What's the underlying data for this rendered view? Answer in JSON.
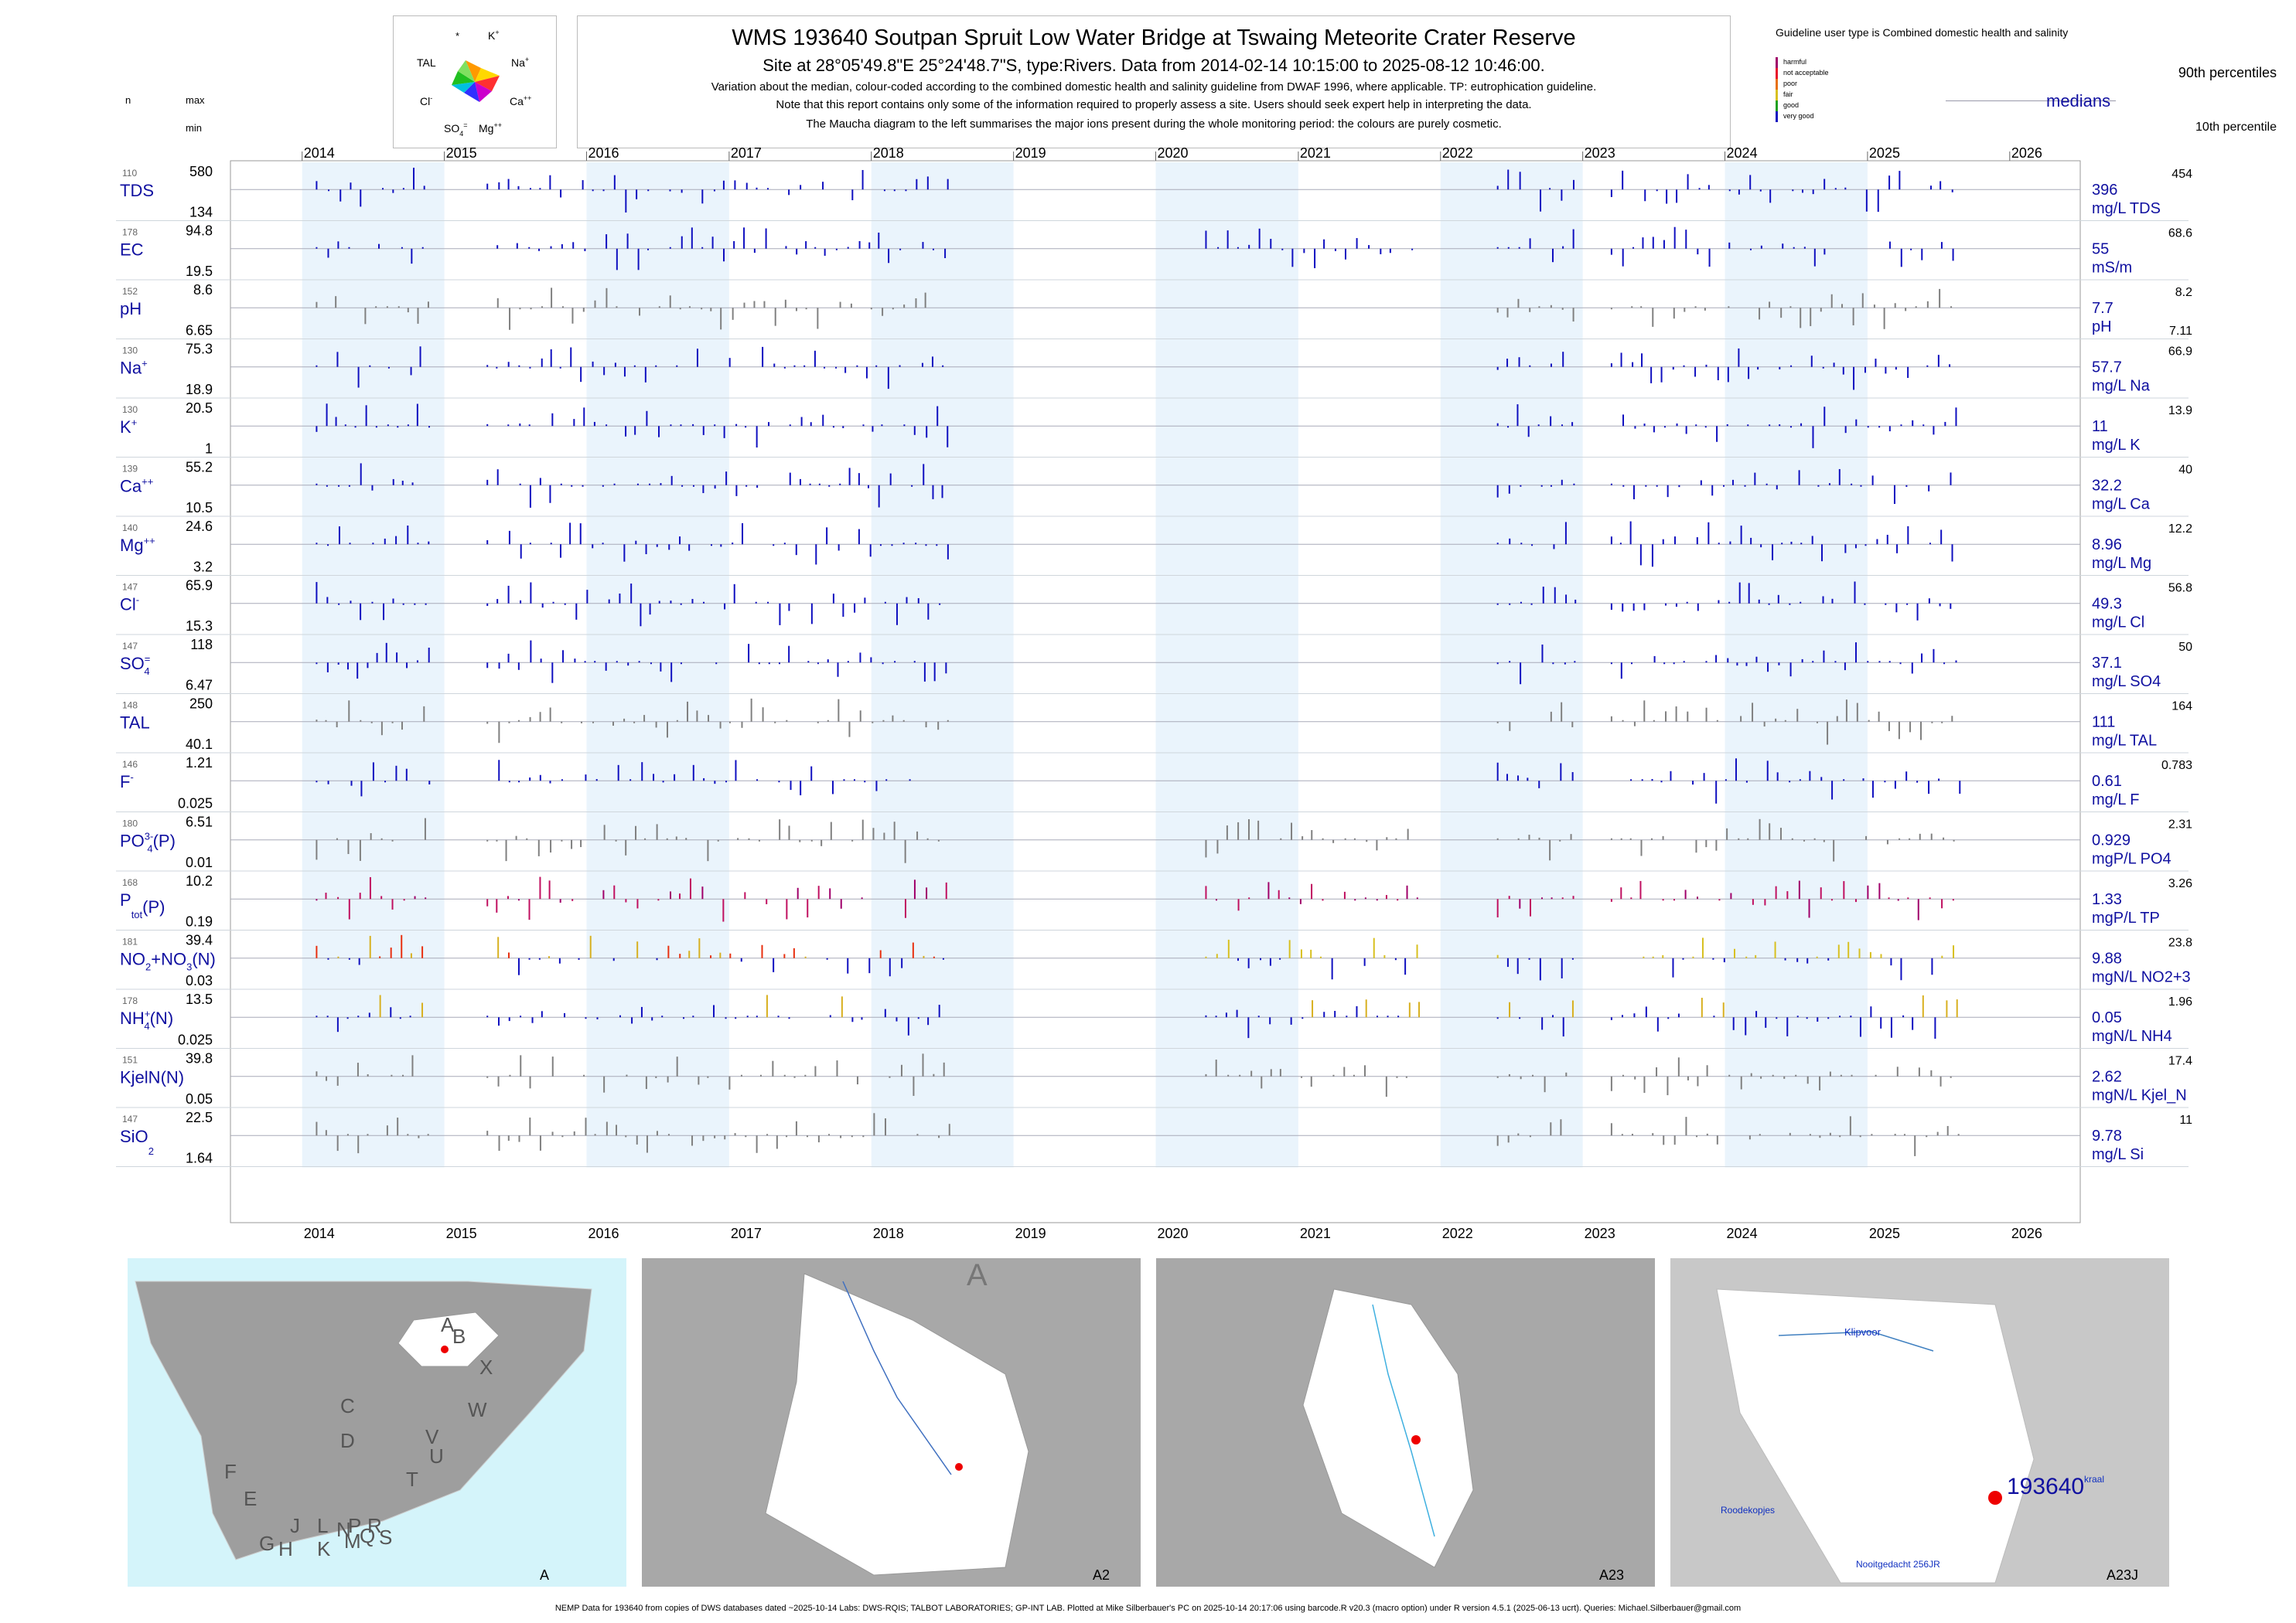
{
  "header": {
    "title": "WMS 193640  Soutpan Spruit Low Water Bridge at Tswaing Meteorite Crater Reserve",
    "subtitle": "Site at 28°05'49.8\"E 25°24'48.7\"S, type:Rivers.  Data from 2014-02-14 10:15:00 to 2025-08-12 10:46:00.",
    "note1": "Variation about the median,  colour-coded according to the combined domestic health and salinity guideline from DWAF 1996, where applicable. TP: eutrophication guideline.",
    "note2": "Note that this report contains only some of the information required to properly assess a site. Users should seek expert help in interpreting the data.",
    "note3": "The Maucha diagram to the left summarises the major ions present during the whole monitoring period: the colours are purely cosmetic."
  },
  "legend": {
    "guideline_title": "Guideline user type is Combined domestic health and salinity",
    "categories": [
      {
        "label": "harmful",
        "color": "#a0006a"
      },
      {
        "label": "not acceptable",
        "color": "#e8102a"
      },
      {
        "label": "poor",
        "color": "#e87010"
      },
      {
        "label": "fair",
        "color": "#d8c020"
      },
      {
        "label": "good",
        "color": "#20a020"
      },
      {
        "label": "very good",
        "color": "#1010c0"
      }
    ],
    "p90": "90th percentiles",
    "medians": "medians",
    "p10": "10th percentile"
  },
  "maucha": {
    "labels": [
      "K+",
      "Na+",
      "Ca++",
      "Mg++",
      "SO4=",
      "Cl-",
      "TAL",
      "*"
    ]
  },
  "column_heads": {
    "n": "n",
    "max": "max",
    "min": "min"
  },
  "chart_data": {
    "type": "bar",
    "description_source": "time-series of deviations about the median per variable",
    "years": [
      "2014",
      "2015",
      "2016",
      "2017",
      "2018",
      "2019",
      "2020",
      "2021",
      "2022",
      "2023",
      "2024",
      "2025",
      "2026"
    ],
    "x_range": [
      "2013-07-01",
      "2026-07-01"
    ],
    "panels": [
      {
        "name": "TDS",
        "n": "110",
        "max": "580",
        "min": "134",
        "median": "396",
        "unit": "mg/L TDS",
        "p90": "454",
        "p10": ""
      },
      {
        "name": "EC",
        "n": "178",
        "max": "94.8",
        "min": "19.5",
        "median": "55",
        "unit": "mS/m",
        "p90": "68.6",
        "p10": ""
      },
      {
        "name": "pH",
        "n": "152",
        "max": "8.6",
        "min": "6.65",
        "median": "7.7",
        "unit": "pH",
        "p90": "8.2",
        "p10": "7.11"
      },
      {
        "name": "Na+",
        "n": "130",
        "max": "75.3",
        "min": "18.9",
        "median": "57.7",
        "unit": "mg/L Na",
        "p90": "66.9",
        "p10": ""
      },
      {
        "name": "K+",
        "n": "130",
        "max": "20.5",
        "min": "1",
        "median": "11",
        "unit": "mg/L K",
        "p90": "13.9",
        "p10": ""
      },
      {
        "name": "Ca++",
        "n": "139",
        "max": "55.2",
        "min": "10.5",
        "median": "32.2",
        "unit": "mg/L Ca",
        "p90": "40",
        "p10": ""
      },
      {
        "name": "Mg++",
        "n": "140",
        "max": "24.6",
        "min": "3.2",
        "median": "8.96",
        "unit": "mg/L Mg",
        "p90": "12.2",
        "p10": ""
      },
      {
        "name": "Cl-",
        "n": "147",
        "max": "65.9",
        "min": "15.3",
        "median": "49.3",
        "unit": "mg/L Cl",
        "p90": "56.8",
        "p10": ""
      },
      {
        "name": "SO4=",
        "n": "147",
        "max": "118",
        "min": "6.47",
        "median": "37.1",
        "unit": "mg/L SO4",
        "p90": "50",
        "p10": ""
      },
      {
        "name": "TAL",
        "n": "148",
        "max": "250",
        "min": "40.1",
        "median": "111",
        "unit": "mg/L TAL",
        "p90": "164",
        "p10": ""
      },
      {
        "name": "F-",
        "n": "146",
        "max": "1.21",
        "min": "0.025",
        "median": "0.61",
        "unit": "mg/L F",
        "p90": "0.783",
        "p10": ""
      },
      {
        "name": "PO4(P)",
        "n": "180",
        "max": "6.51",
        "min": "0.01",
        "median": "0.929",
        "unit": "mgP/L PO4",
        "p90": "2.31",
        "p10": ""
      },
      {
        "name": "Ptot(P)",
        "n": "168",
        "max": "10.2",
        "min": "0.19",
        "median": "1.33",
        "unit": "mgP/L TP",
        "p90": "3.26",
        "p10": ""
      },
      {
        "name": "NO2+NO3(N)",
        "n": "181",
        "max": "39.4",
        "min": "0.03",
        "median": "9.88",
        "unit": "mgN/L NO2+3",
        "p90": "23.8",
        "p10": ""
      },
      {
        "name": "NH4+(N)",
        "n": "178",
        "max": "13.5",
        "min": "0.025",
        "median": "0.05",
        "unit": "mgN/L NH4",
        "p90": "1.96",
        "p10": ""
      },
      {
        "name": "KjelN(N)",
        "n": "151",
        "max": "39.8",
        "min": "0.05",
        "median": "2.62",
        "unit": "mgN/L Kjel_N",
        "p90": "17.4",
        "p10": ""
      },
      {
        "name": "SiO2",
        "n": "147",
        "max": "22.5",
        "min": "1.64",
        "median": "9.78",
        "unit": "mg/L Si",
        "p90": "11",
        "p10": ""
      }
    ]
  },
  "maps": [
    {
      "caption": "A",
      "labels": [
        "A",
        "B",
        "C",
        "D",
        "E",
        "F",
        "G",
        "H",
        "J",
        "K",
        "L",
        "M",
        "N",
        "P",
        "Q",
        "R",
        "S",
        "T",
        "U",
        "V",
        "W",
        "X"
      ]
    },
    {
      "caption": "A2",
      "labels": [
        "A"
      ]
    },
    {
      "caption": "A23",
      "labels": []
    },
    {
      "caption": "A23J",
      "labels": [
        "Klipvoor",
        "193640",
        "Roodekopjes",
        "Nooitgedacht 256JR",
        "kraal"
      ]
    }
  ],
  "footer": "NEMP Data for 193640 from copies of DWS databases dated ~2025-10-14 Labs: DWS-RQIS; TALBOT LABORATORIES; GP-INT LAB. Plotted at Mike Silberbauer's PC on 2025-10-14 20:17:06 using barcode.R v20.3 (macro option) under R version 4.5.1 (2025-06-13 ucrt). Queries: Michael.Silberbauer@gmail.com"
}
